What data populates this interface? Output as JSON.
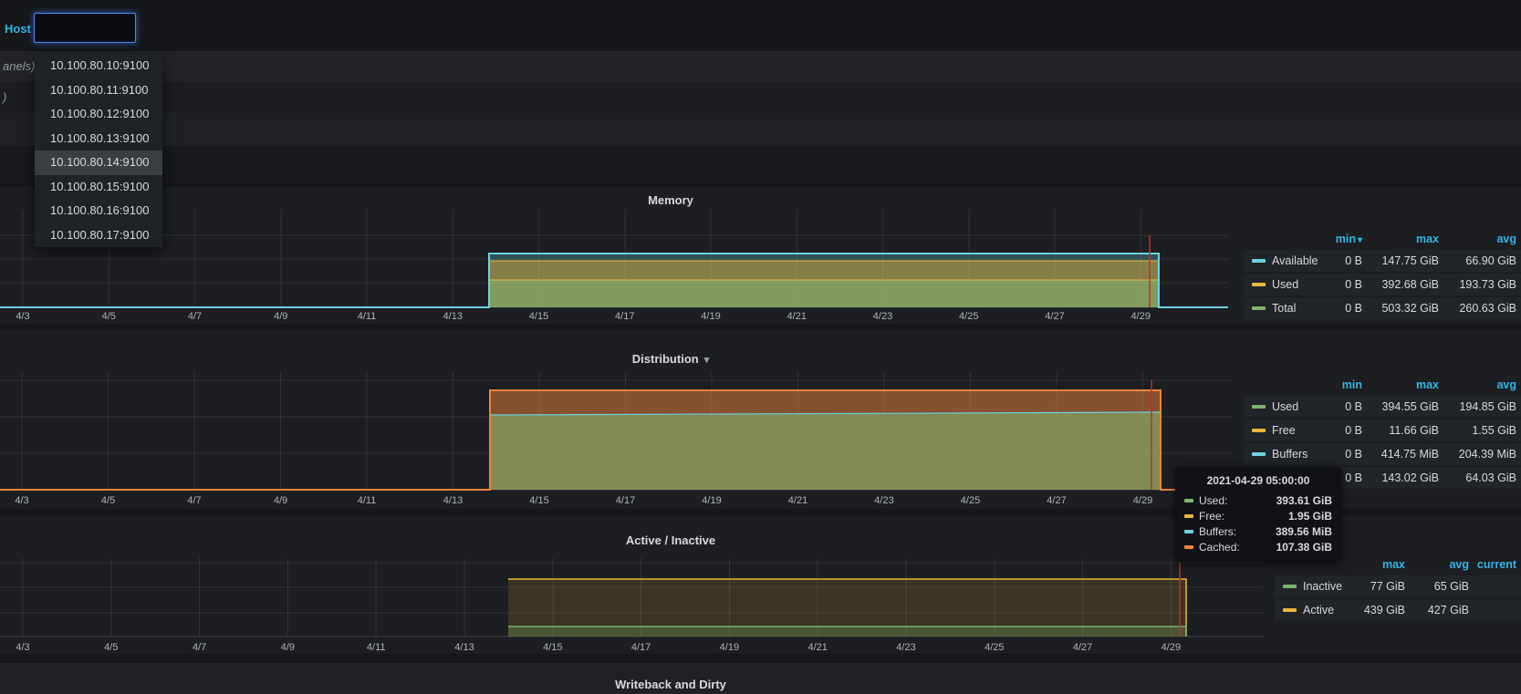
{
  "host_bar": {
    "label": "Host",
    "input_value": ""
  },
  "host_dropdown": {
    "items": [
      "10.100.80.10:9100",
      "10.100.80.11:9100",
      "10.100.80.12:9100",
      "10.100.80.13:9100",
      "10.100.80.14:9100",
      "10.100.80.15:9100",
      "10.100.80.16:9100",
      "10.100.80.17:9100"
    ],
    "highlighted_index": 4,
    "highlighted_value": "10.100.80.14:9100"
  },
  "collapsed_rows": {
    "row1_label": "anels)",
    "row2_label": ")"
  },
  "x_axis_labels": [
    "4/3",
    "4/5",
    "4/7",
    "4/9",
    "4/11",
    "4/13",
    "4/15",
    "4/17",
    "4/19",
    "4/21",
    "4/23",
    "4/25",
    "4/27",
    "4/29"
  ],
  "colors": {
    "accent_blue": "#33B5E5",
    "focus_border": "#4F84E8",
    "crosshair_red": "#B5352C",
    "green": "#7EB26D",
    "yellow": "#EAB839",
    "cyan": "#6ED0E0",
    "orange": "#EF843C"
  },
  "panels": [
    {
      "id": "memory",
      "title": "Memory",
      "legend": {
        "headers": [
          "min",
          "max",
          "avg"
        ],
        "sorted_by": "min",
        "rows": [
          {
            "label": "Available",
            "color": "#6ED0E0",
            "values": [
              "0 B",
              "147.75 GiB",
              "66.90 GiB"
            ]
          },
          {
            "label": "Used",
            "color": "#EAB839",
            "values": [
              "0 B",
              "392.68 GiB",
              "193.73 GiB"
            ]
          },
          {
            "label": "Total",
            "color": "#7EB26D",
            "values": [
              "0 B",
              "503.32 GiB",
              "260.63 GiB"
            ]
          }
        ]
      },
      "chart_data": {
        "type": "area",
        "x_range": [
          "4/3",
          "4/29"
        ],
        "data_start": "4/14",
        "data_end": "2021-04-29 ~05:00",
        "y_zero_before_start": true,
        "series": [
          {
            "name": "Available",
            "color": "#6ED0E0",
            "plateau_value": "~148 GiB"
          },
          {
            "name": "Used",
            "color": "#EAB839",
            "plateau_value": "~390 GiB"
          },
          {
            "name": "Total",
            "color": "#7EB26D",
            "plateau_value": "~503 GiB"
          }
        ]
      }
    },
    {
      "id": "distribution",
      "title": "Distribution",
      "has_menu_caret": true,
      "legend": {
        "headers": [
          "min",
          "max",
          "avg"
        ],
        "rows": [
          {
            "label": "Used",
            "color": "#7EB26D",
            "values": [
              "0 B",
              "394.55 GiB",
              "194.85 GiB"
            ]
          },
          {
            "label": "Free",
            "color": "#EAB839",
            "values": [
              "0 B",
              "11.66 GiB",
              "1.55 GiB"
            ]
          },
          {
            "label": "Buffers",
            "color": "#6ED0E0",
            "values": [
              "0 B",
              "414.75 MiB",
              "204.39 MiB"
            ]
          },
          {
            "label": "Cached",
            "color": "#EF843C",
            "values": [
              "0 B",
              "143.02 GiB",
              "64.03 GiB"
            ]
          }
        ]
      },
      "chart_data": {
        "type": "area",
        "stacked": true,
        "x_range": [
          "4/3",
          "4/29"
        ],
        "data_start": "4/14",
        "data_end": "2021-04-29 ~05:00",
        "y_zero_before_start": true,
        "series": [
          {
            "name": "Used",
            "color": "#7EB26D",
            "plateau_value": "~390 GiB"
          },
          {
            "name": "Buffers",
            "color": "#6ED0E0",
            "plateau_value": "~390 MiB"
          },
          {
            "name": "Cached",
            "color": "#EF843C",
            "plateau_value": "~107 GiB"
          }
        ]
      }
    },
    {
      "id": "active_inactive",
      "title": "Active / Inactive",
      "legend": {
        "headers": [
          "max",
          "avg",
          "current"
        ],
        "rows": [
          {
            "label": "Inactive",
            "color": "#7EB26D",
            "values": [
              "77 GiB",
              "65 GiB",
              ""
            ]
          },
          {
            "label": "Active",
            "color": "#EAB839",
            "values": [
              "439 GiB",
              "427 GiB",
              ""
            ]
          }
        ]
      },
      "chart_data": {
        "type": "line",
        "x_range": [
          "4/3",
          "4/29"
        ],
        "data_start": "4/14",
        "data_end": "2021-04-29 ~05:00",
        "series": [
          {
            "name": "Active",
            "color": "#EAB839",
            "plateau_value": "~430 GiB"
          },
          {
            "name": "Inactive",
            "color": "#7EB26D",
            "plateau_value": "~65 GiB"
          }
        ]
      }
    },
    {
      "id": "writeback",
      "title": "Writeback and Dirty"
    }
  ],
  "tooltip": {
    "timestamp": "2021-04-29 05:00:00",
    "rows": [
      {
        "label": "Used:",
        "color": "#7EB26D",
        "value": "393.61 GiB"
      },
      {
        "label": "Free:",
        "color": "#EAB839",
        "value": "1.95 GiB"
      },
      {
        "label": "Buffers:",
        "color": "#6ED0E0",
        "value": "389.56 MiB"
      },
      {
        "label": "Cached:",
        "color": "#EF843C",
        "value": "107.38 GiB"
      }
    ]
  }
}
